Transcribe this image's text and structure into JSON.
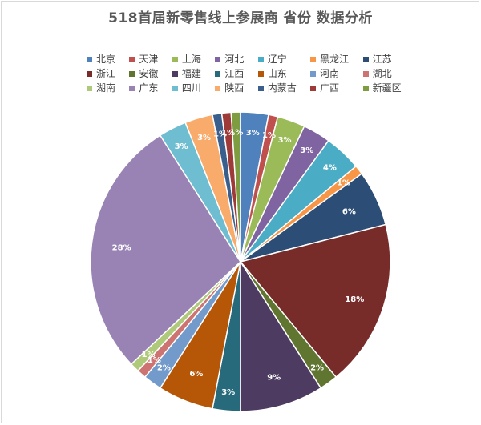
{
  "chart_data": {
    "type": "pie",
    "title": "518首届新零售线上参展商 省份 数据分析",
    "legend_position": "top",
    "slices": [
      {
        "name": "北京",
        "value": 3,
        "label": "3%",
        "color": "#4F81BD"
      },
      {
        "name": "天津",
        "value": 1,
        "label": "1%",
        "color": "#C0504D"
      },
      {
        "name": "上海",
        "value": 3,
        "label": "3%",
        "color": "#9BBB59"
      },
      {
        "name": "河北",
        "value": 3,
        "label": "3%",
        "color": "#8064A2"
      },
      {
        "name": "辽宁",
        "value": 4,
        "label": "4%",
        "color": "#4BACC6"
      },
      {
        "name": "黑龙江",
        "value": 1,
        "label": "1%",
        "color": "#F79646"
      },
      {
        "name": "江苏",
        "value": 6,
        "label": "6%",
        "color": "#2C4D75"
      },
      {
        "name": "浙江",
        "value": 18,
        "label": "18%",
        "color": "#772C2A"
      },
      {
        "name": "安徽",
        "value": 2,
        "label": "2%",
        "color": "#5F7530"
      },
      {
        "name": "福建",
        "value": 9,
        "label": "9%",
        "color": "#4D3B62"
      },
      {
        "name": "江西",
        "value": 3,
        "label": "3%",
        "color": "#276A7C"
      },
      {
        "name": "山东",
        "value": 6,
        "label": "6%",
        "color": "#B65708"
      },
      {
        "name": "河南",
        "value": 2,
        "label": "2%",
        "color": "#729ACA"
      },
      {
        "name": "湖北",
        "value": 1,
        "label": "1%",
        "color": "#CD7371"
      },
      {
        "name": "湖南",
        "value": 1,
        "label": "1%",
        "color": "#AFC97A"
      },
      {
        "name": "广东",
        "value": 28,
        "label": "28%",
        "color": "#9983B5"
      },
      {
        "name": "四川",
        "value": 3,
        "label": "3%",
        "color": "#6FBDD1"
      },
      {
        "name": "陕西",
        "value": 3,
        "label": "3%",
        "color": "#F9AB6B"
      },
      {
        "name": "内蒙古",
        "value": 1,
        "label": "1%",
        "color": "#3A5F8C"
      },
      {
        "name": "广西",
        "value": 1,
        "label": "1%",
        "color": "#9E3B38"
      },
      {
        "name": "新疆区",
        "value": 1,
        "label": "1%",
        "color": "#7E9C40"
      }
    ]
  }
}
